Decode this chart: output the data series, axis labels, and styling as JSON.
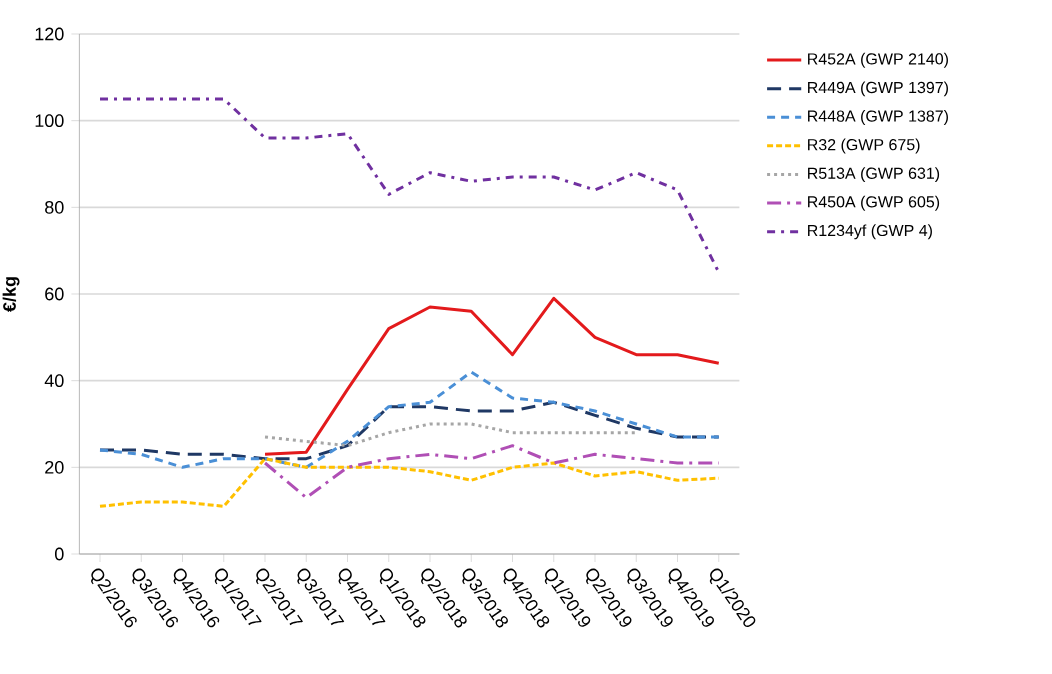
{
  "chart_data": {
    "type": "line",
    "ylabel": "€/kg",
    "categories": [
      "Q2/2016",
      "Q3/2016",
      "Q4/2016",
      "Q1/2017",
      "Q2/2017",
      "Q3/2017",
      "Q4/2017",
      "Q1/2018",
      "Q2/2018",
      "Q3/2018",
      "Q4/2018",
      "Q1/2019",
      "Q2/2019",
      "Q3/2019",
      "Q4/2019",
      "Q1/2020"
    ],
    "ylim": [
      0,
      120
    ],
    "yticks": [
      0,
      20,
      40,
      60,
      80,
      100,
      120
    ],
    "grid": "y",
    "legend": "right",
    "marker": "none",
    "series": [
      {
        "name": "R452A (GWP 2140)",
        "color": "#e31a1c",
        "line_style": "solid",
        "values": [
          null,
          null,
          null,
          null,
          23,
          23.5,
          38,
          52,
          57,
          56,
          46,
          59,
          50,
          46,
          46,
          44
        ]
      },
      {
        "name": "R449A (GWP 1397)",
        "color": "#1f3864",
        "line_style": "longdashed",
        "values": [
          24,
          24,
          23,
          23,
          22,
          22,
          25,
          34,
          34,
          33,
          33,
          35,
          32,
          29,
          27,
          27
        ]
      },
      {
        "name": "R448A (GWP 1387)",
        "color": "#4a8fd6",
        "line_style": "dashed",
        "values": [
          24,
          23,
          20,
          22,
          22,
          20,
          26,
          34,
          35,
          42,
          36,
          35,
          33,
          30,
          27,
          27
        ]
      },
      {
        "name": "R32 (GWP 675)",
        "color": "#ffc000",
        "line_style": "densedashed",
        "values": [
          11,
          12,
          12,
          11,
          22,
          20,
          20,
          20,
          19,
          17,
          20,
          21,
          18,
          19,
          17,
          17.5
        ]
      },
      {
        "name": "R513A (GWP 631)",
        "color": "#a6a6a6",
        "line_style": "dotted",
        "values": [
          null,
          null,
          null,
          null,
          27,
          26,
          25,
          28,
          30,
          30,
          28,
          28,
          28,
          28,
          null,
          null
        ]
      },
      {
        "name": "R450A (GWP 605)",
        "color": "#b04fb5",
        "line_style": "dashdot",
        "values": [
          null,
          null,
          null,
          null,
          21,
          13,
          20,
          22,
          23,
          22,
          25,
          21,
          23,
          22,
          21,
          21
        ]
      },
      {
        "name": "R1234yf (GWP 4)",
        "color": "#7030a0",
        "line_style": "densedashdot",
        "values": [
          105,
          105,
          105,
          105,
          96,
          96,
          97,
          83,
          88,
          86,
          87,
          87,
          84,
          88,
          84,
          65
        ]
      }
    ]
  }
}
